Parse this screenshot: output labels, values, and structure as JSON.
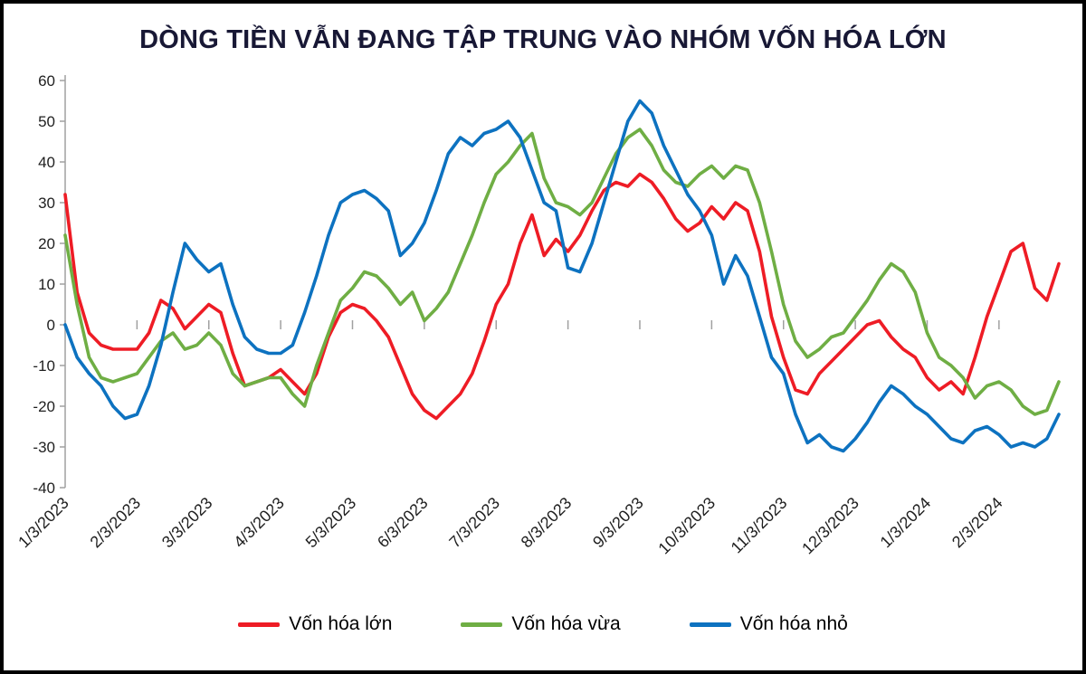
{
  "colors": {
    "frame": "#000000",
    "background": "#ffffff",
    "title_text": "#181835",
    "axis_text": "#1f1f1f",
    "axis_line": "#a0a0a0",
    "series_large_cap": "#ee1c25",
    "series_mid_cap": "#6fae44",
    "series_small_cap": "#0d72c0"
  },
  "chart_data": {
    "type": "line",
    "title": "DÒNG TIỀN VẪN ĐANG TẬP TRUNG VÀO NHÓM VỐN HÓA LỚN",
    "x_axis": "date",
    "x_tick_labels": [
      "1/3/2023",
      "2/3/2023",
      "3/3/2023",
      "4/3/2023",
      "5/3/2023",
      "6/3/2023",
      "7/3/2023",
      "8/3/2023",
      "9/3/2023",
      "10/3/2023",
      "11/3/2023",
      "12/3/2023",
      "1/3/2024",
      "2/3/2024"
    ],
    "points_per_month": 6,
    "ylim": [
      -40,
      60
    ],
    "y_ticks": [
      60,
      50,
      40,
      30,
      20,
      10,
      0,
      -10,
      -20,
      -30,
      -40
    ],
    "grid": false,
    "legend_position": "bottom",
    "series": [
      {
        "name": "Vốn hóa lớn",
        "color": "#ee1c25",
        "values": [
          32,
          8,
          -2,
          -5,
          -6,
          -6,
          -6,
          -2,
          6,
          4,
          -1,
          2,
          5,
          3,
          -7,
          -15,
          -14,
          -13,
          -11,
          -14,
          -17,
          -12,
          -3,
          3,
          5,
          4,
          1,
          -3,
          -10,
          -17,
          -21,
          -23,
          -20,
          -17,
          -12,
          -4,
          5,
          10,
          20,
          27,
          17,
          21,
          18,
          22,
          28,
          33,
          35,
          34,
          37,
          35,
          31,
          26,
          23,
          25,
          29,
          26,
          30,
          28,
          18,
          2,
          -8,
          -16,
          -17,
          -12,
          -9,
          -6,
          -3,
          0,
          1,
          -3,
          -6,
          -8,
          -13,
          -16,
          -14,
          -17,
          -8,
          2,
          10,
          18,
          20,
          9,
          6,
          15
        ]
      },
      {
        "name": "Vốn hóa vừa",
        "color": "#6fae44",
        "values": [
          22,
          5,
          -8,
          -13,
          -14,
          -13,
          -12,
          -8,
          -4,
          -2,
          -6,
          -5,
          -2,
          -5,
          -12,
          -15,
          -14,
          -13,
          -13,
          -17,
          -20,
          -10,
          -2,
          6,
          9,
          13,
          12,
          9,
          5,
          8,
          1,
          4,
          8,
          15,
          22,
          30,
          37,
          40,
          44,
          47,
          36,
          30,
          29,
          27,
          30,
          36,
          42,
          46,
          48,
          44,
          38,
          35,
          34,
          37,
          39,
          36,
          39,
          38,
          30,
          18,
          5,
          -4,
          -8,
          -6,
          -3,
          -2,
          2,
          6,
          11,
          15,
          13,
          8,
          -2,
          -8,
          -10,
          -13,
          -18,
          -15,
          -14,
          -16,
          -20,
          -22,
          -21,
          -14
        ]
      },
      {
        "name": "Vốn hóa nhỏ",
        "color": "#0d72c0",
        "values": [
          0,
          -8,
          -12,
          -15,
          -20,
          -23,
          -22,
          -15,
          -5,
          8,
          20,
          16,
          13,
          15,
          5,
          -3,
          -6,
          -7,
          -7,
          -5,
          3,
          12,
          22,
          30,
          32,
          33,
          31,
          28,
          17,
          20,
          25,
          33,
          42,
          46,
          44,
          47,
          48,
          50,
          46,
          38,
          30,
          28,
          14,
          13,
          20,
          30,
          40,
          50,
          55,
          52,
          44,
          38,
          32,
          28,
          22,
          10,
          17,
          12,
          2,
          -8,
          -12,
          -22,
          -29,
          -27,
          -30,
          -31,
          -28,
          -24,
          -19,
          -15,
          -17,
          -20,
          -22,
          -25,
          -28,
          -29,
          -26,
          -25,
          -27,
          -30,
          -29,
          -30,
          -28,
          -22
        ]
      }
    ]
  }
}
